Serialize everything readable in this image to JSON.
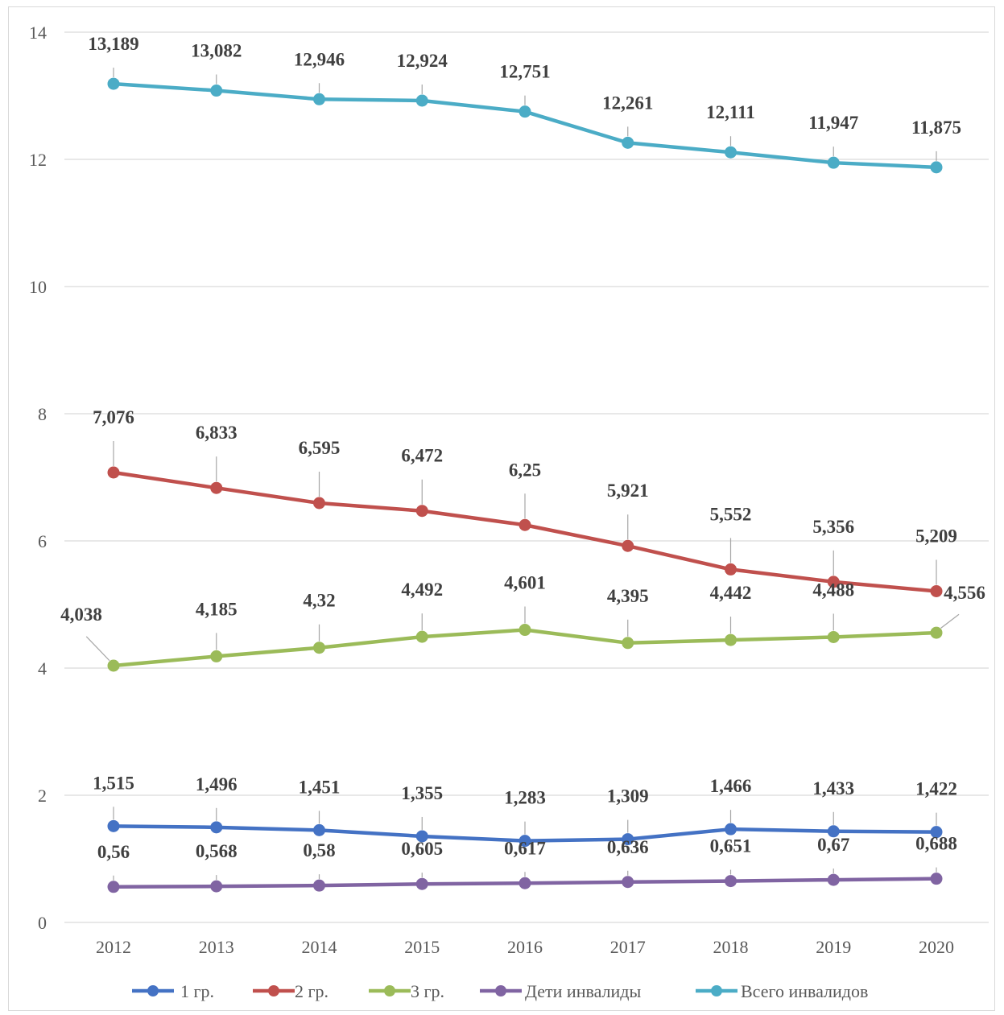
{
  "chart_data": {
    "type": "line",
    "title": "",
    "xlabel": "",
    "ylabel": "",
    "categories": [
      "2012",
      "2013",
      "2014",
      "2015",
      "2016",
      "2017",
      "2018",
      "2019",
      "2020"
    ],
    "ylim": [
      0,
      14
    ],
    "yticks": [
      0,
      2,
      4,
      6,
      8,
      10,
      12,
      14
    ],
    "grid": true,
    "legend_position": "bottom",
    "series": [
      {
        "name": "1 гр.",
        "color": "#4472C4",
        "values": [
          1.515,
          1.496,
          1.451,
          1.355,
          1.283,
          1.309,
          1.466,
          1.433,
          1.422
        ],
        "labels": [
          "1,515",
          "1,496",
          "1,451",
          "1,355",
          "1,283",
          "1,309",
          "1,466",
          "1,433",
          "1,422"
        ]
      },
      {
        "name": "2 гр.",
        "color": "#C0504D",
        "values": [
          7.076,
          6.833,
          6.595,
          6.472,
          6.25,
          5.921,
          5.552,
          5.356,
          5.209
        ],
        "labels": [
          "7,076",
          "6,833",
          "6,595",
          "6,472",
          "6,25",
          "5,921",
          "5,552",
          "5,356",
          "5,209"
        ]
      },
      {
        "name": "3 гр.",
        "color": "#9BBB59",
        "values": [
          4.038,
          4.185,
          4.32,
          4.492,
          4.601,
          4.395,
          4.442,
          4.488,
          4.556
        ],
        "labels": [
          "4,038",
          "4,185",
          "4,32",
          "4,492",
          "4,601",
          "4,395",
          "4,442",
          "4,488",
          "4,556"
        ]
      },
      {
        "name": "Дети инвалиды",
        "color": "#8064A2",
        "values": [
          0.56,
          0.568,
          0.58,
          0.605,
          0.617,
          0.636,
          0.651,
          0.67,
          0.688
        ],
        "labels": [
          "0,56",
          "0,568",
          "0,58",
          "0,605",
          "0,617",
          "0,636",
          "0,651",
          "0,67",
          "0,688"
        ]
      },
      {
        "name": "Всего инвалидов",
        "color": "#4BACC6",
        "values": [
          13.189,
          13.082,
          12.946,
          12.924,
          12.751,
          12.261,
          12.111,
          11.947,
          11.875
        ],
        "labels": [
          "13,189",
          "13,082",
          "12,946",
          "12,924",
          "12,751",
          "12,261",
          "12,111",
          "11,947",
          "11,875"
        ]
      }
    ]
  }
}
